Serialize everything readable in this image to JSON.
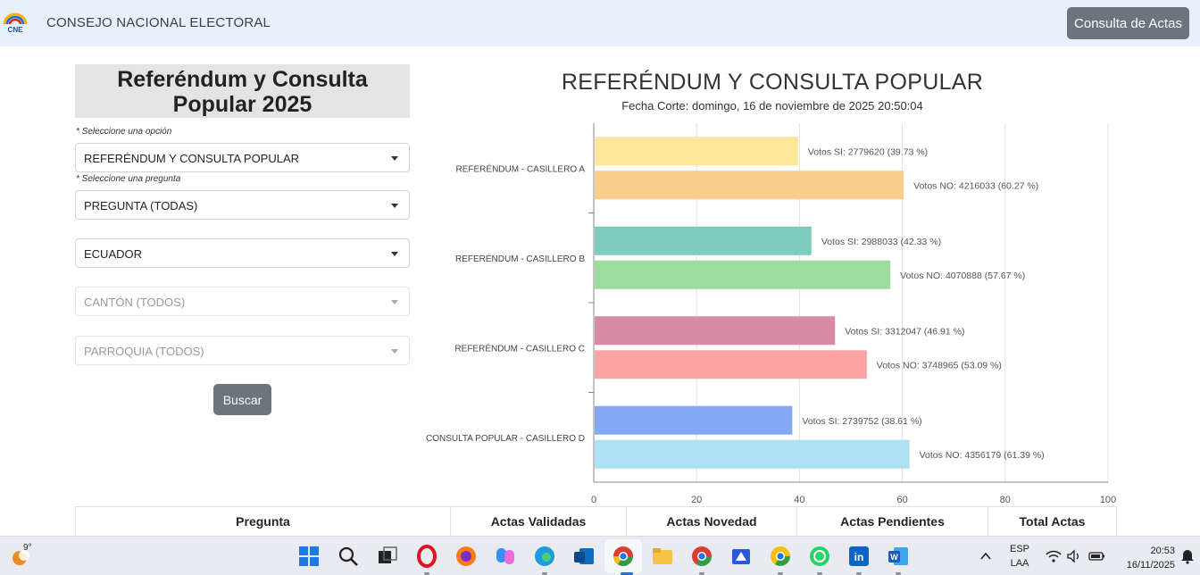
{
  "navbar": {
    "brand": "CONSEJO NACIONAL ELECTORAL",
    "logo_text": "CNE",
    "consulta_actas_label": "Consulta de Actas"
  },
  "form": {
    "title": "Referéndum y Consulta Popular 2025",
    "hint_option": "* Seleccione una opción",
    "select_option": "REFERÉNDUM Y CONSULTA POPULAR",
    "hint_question": "* Seleccione una pregunta",
    "select_question": "PREGUNTA (TODAS)",
    "select_region": "ECUADOR",
    "select_canton": "CANTÓN (TODOS)",
    "select_parroquia": "PARROQUIA (TODOS)",
    "search_label": "Buscar"
  },
  "chart_header": {
    "title": "REFERÉNDUM Y CONSULTA POPULAR",
    "subtitle": "Fecha Corte: domingo, 16 de noviembre de 2025 20:50:04"
  },
  "chart_data": {
    "type": "bar",
    "orientation": "horizontal",
    "categories": [
      "REFERÉNDUM - CASILLERO A",
      "REFERÉNDUM - CASILLERO B",
      "REFERÉNDUM - CASILLERO C",
      "CONSULTA POPULAR - CASILLERO D"
    ],
    "xlim": [
      0,
      100
    ],
    "xticks": [
      0,
      20,
      40,
      60,
      80,
      100
    ],
    "grid": true,
    "bars": [
      {
        "category": 0,
        "kind": "SI",
        "value": 39.73,
        "label": "Votos SI: 2779620 (39.73 %)",
        "color": "#fbe69a"
      },
      {
        "category": 0,
        "kind": "NO",
        "value": 60.27,
        "label": "Votos NO: 4216033 (60.27 %)",
        "color": "#f9cd8a"
      },
      {
        "category": 1,
        "kind": "SI",
        "value": 42.33,
        "label": "Votos SI: 2988033 (42.33 %)",
        "color": "#7ecbbf"
      },
      {
        "category": 1,
        "kind": "NO",
        "value": 57.67,
        "label": "Votos NO: 4070888 (57.67 %)",
        "color": "#9cdc9c"
      },
      {
        "category": 2,
        "kind": "SI",
        "value": 46.91,
        "label": "Votos SI: 3312047 (46.91 %)",
        "color": "#d98aa5"
      },
      {
        "category": 2,
        "kind": "NO",
        "value": 53.09,
        "label": "Votos NO: 3748965 (53.09 %)",
        "color": "#f9a3a3"
      },
      {
        "category": 3,
        "kind": "SI",
        "value": 38.61,
        "label": "Votos SI: 2739752 (38.61 %)",
        "color": "#85a9f3"
      },
      {
        "category": 3,
        "kind": "NO",
        "value": 61.39,
        "label": "Votos NO: 4356179 (61.39 %)",
        "color": "#aee1f3"
      }
    ]
  },
  "table": {
    "headers": [
      "Pregunta",
      "Actas Validadas",
      "Actas Novedad",
      "Actas Pendientes",
      "Total Actas"
    ]
  },
  "taskbar": {
    "temperature": "9°",
    "language": "ESP",
    "layout": "LAA",
    "time": "20:53",
    "date": "16/11/2025"
  }
}
